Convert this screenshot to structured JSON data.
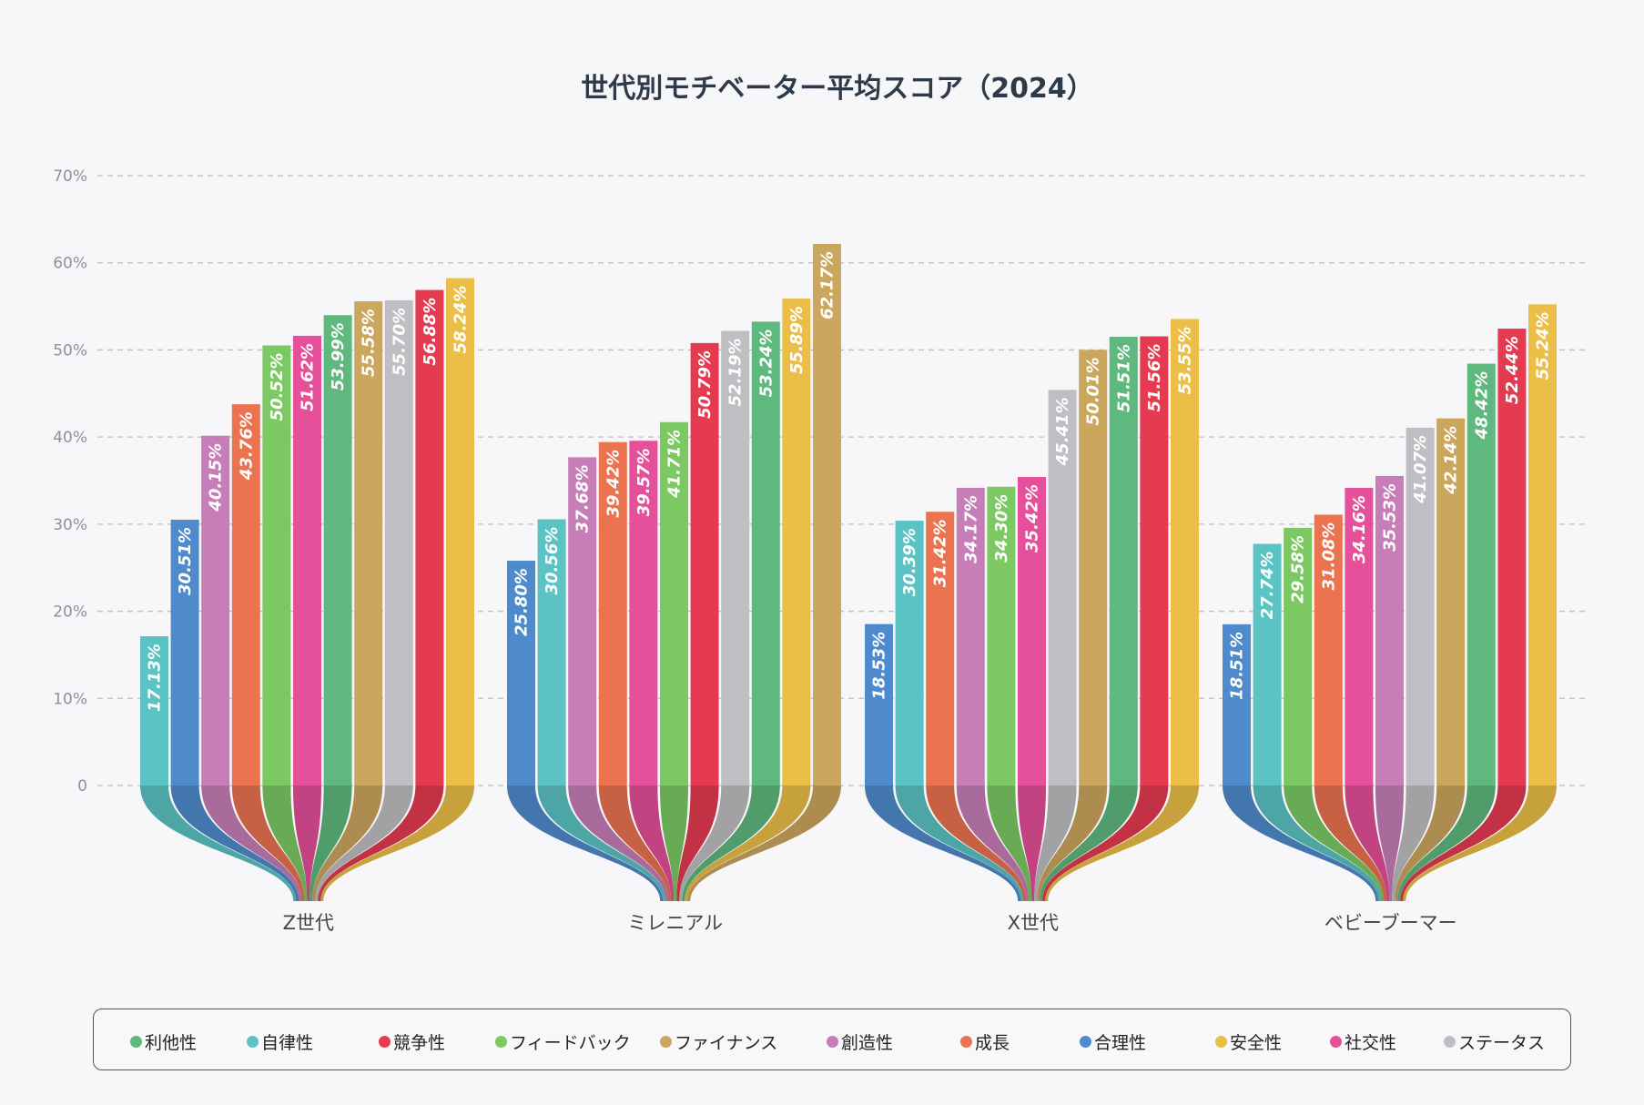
{
  "chart_data": {
    "type": "bar",
    "title": "世代別モチベーター平均スコア（2024）",
    "categories": [
      "Z世代",
      "ミレニアル",
      "X世代",
      "ベビーブーマー"
    ],
    "ylim": [
      0,
      70
    ],
    "yticks": [
      "0",
      "10%",
      "20%",
      "30%",
      "40%",
      "50%",
      "60%",
      "70%"
    ],
    "grid": true,
    "legend_position": "bottom",
    "sort_within_group": "ascending",
    "series": [
      {
        "name": "利他性",
        "color": "#5fb87d",
        "values": [
          53.99,
          53.24,
          51.51,
          48.42
        ]
      },
      {
        "name": "自律性",
        "color": "#5bc3c4",
        "values": [
          17.13,
          30.56,
          30.39,
          27.74
        ]
      },
      {
        "name": "競争性",
        "color": "#e53b50",
        "values": [
          56.88,
          50.79,
          51.56,
          52.44
        ]
      },
      {
        "name": "フィードバック",
        "color": "#7cc963",
        "values": [
          50.52,
          41.71,
          34.3,
          29.58
        ]
      },
      {
        "name": "ファイナンス",
        "color": "#cba75d",
        "values": [
          55.58,
          62.17,
          50.01,
          42.14
        ]
      },
      {
        "name": "創造性",
        "color": "#c77db8",
        "values": [
          40.15,
          37.68,
          34.17,
          35.53
        ]
      },
      {
        "name": "成長",
        "color": "#eb7350",
        "values": [
          43.76,
          39.42,
          31.42,
          31.08
        ]
      },
      {
        "name": "合理性",
        "color": "#4f8bcc",
        "values": [
          30.51,
          25.8,
          18.53,
          18.51
        ]
      },
      {
        "name": "安全性",
        "color": "#ebbf47",
        "values": [
          58.24,
          55.89,
          53.55,
          55.24
        ]
      },
      {
        "name": "社交性",
        "color": "#e64f99",
        "values": [
          51.62,
          39.57,
          35.42,
          34.16
        ]
      },
      {
        "name": "ステータス",
        "color": "#bfbec2",
        "values": [
          55.7,
          52.19,
          45.41,
          41.07
        ]
      }
    ]
  }
}
